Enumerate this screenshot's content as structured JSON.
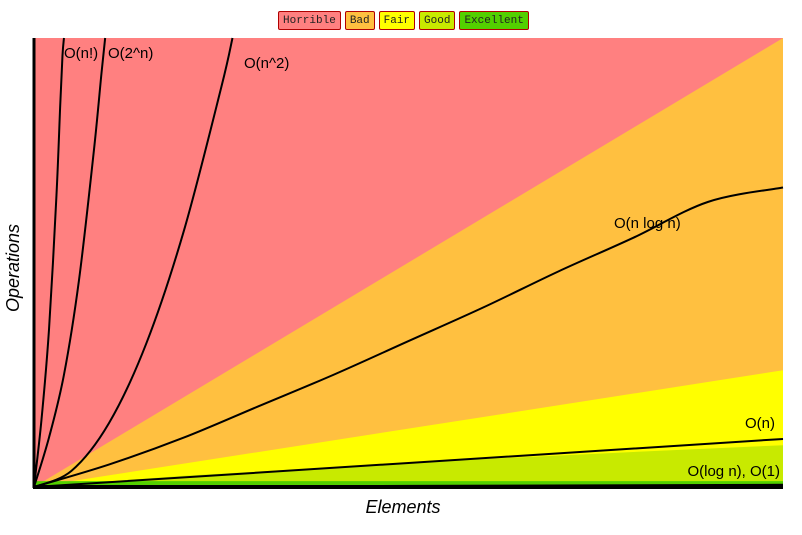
{
  "chart_data": {
    "type": "area",
    "title": "",
    "xlabel": "Elements",
    "ylabel": "Operations",
    "xlim": [
      0,
      100
    ],
    "ylim": [
      0,
      100
    ],
    "grid": false,
    "legend_placement": "top-center",
    "legend": [
      {
        "label": "Horrible",
        "color": "#ff8080"
      },
      {
        "label": "Bad",
        "color": "#ffc040"
      },
      {
        "label": "Fair",
        "color": "#ffff00"
      },
      {
        "label": "Good",
        "color": "#c8ea00"
      },
      {
        "label": "Excellent",
        "color": "#53d000"
      }
    ],
    "regions": [
      {
        "rating": "Horrible",
        "color": "#ff8080",
        "x": [
          0,
          100
        ],
        "y_top": [
          100,
          100
        ]
      },
      {
        "rating": "Bad",
        "color": "#ffc040",
        "x": [
          0,
          100
        ],
        "y_top": [
          0,
          100
        ]
      },
      {
        "rating": "Fair",
        "color": "#ffff00",
        "x": [
          0,
          100
        ],
        "y_top": [
          0,
          26
        ]
      },
      {
        "rating": "Good",
        "color": "#c8ea00",
        "x": [
          0,
          20,
          40,
          60,
          80,
          100
        ],
        "y_top": [
          0,
          2.5,
          4.4,
          6.2,
          7.8,
          9.3
        ]
      },
      {
        "rating": "Excellent",
        "color": "#53d000",
        "x": [
          0,
          100
        ],
        "y_top": [
          1.3,
          1.3
        ]
      }
    ],
    "series": [
      {
        "name": "O(n!)",
        "x": [
          0,
          1,
          2,
          3,
          3.5,
          3.8,
          4.0
        ],
        "y": [
          0,
          15,
          35,
          65,
          85,
          96,
          100
        ]
      },
      {
        "name": "O(2^n)",
        "x": [
          0,
          2,
          4,
          6,
          8,
          9,
          9.5
        ],
        "y": [
          0,
          11,
          25,
          46,
          75,
          92,
          100
        ]
      },
      {
        "name": "O(n^2)",
        "x": [
          0,
          5,
          10,
          15,
          20,
          25,
          26.5
        ],
        "y": [
          0,
          3.6,
          14.2,
          32,
          57,
          89,
          100
        ]
      },
      {
        "name": "O(n log n)",
        "x": [
          0,
          10,
          20,
          30,
          40,
          50,
          60,
          70,
          80,
          90,
          100
        ],
        "y": [
          0,
          5,
          11,
          18,
          25,
          32.5,
          40,
          48,
          55.5,
          63.5,
          66.7
        ]
      },
      {
        "name": "O(n)",
        "x": [
          0,
          100
        ],
        "y": [
          0,
          10.7
        ]
      },
      {
        "name": "O(log n), O(1)",
        "x": [
          0,
          100
        ],
        "y": [
          0,
          0.5
        ]
      }
    ]
  }
}
